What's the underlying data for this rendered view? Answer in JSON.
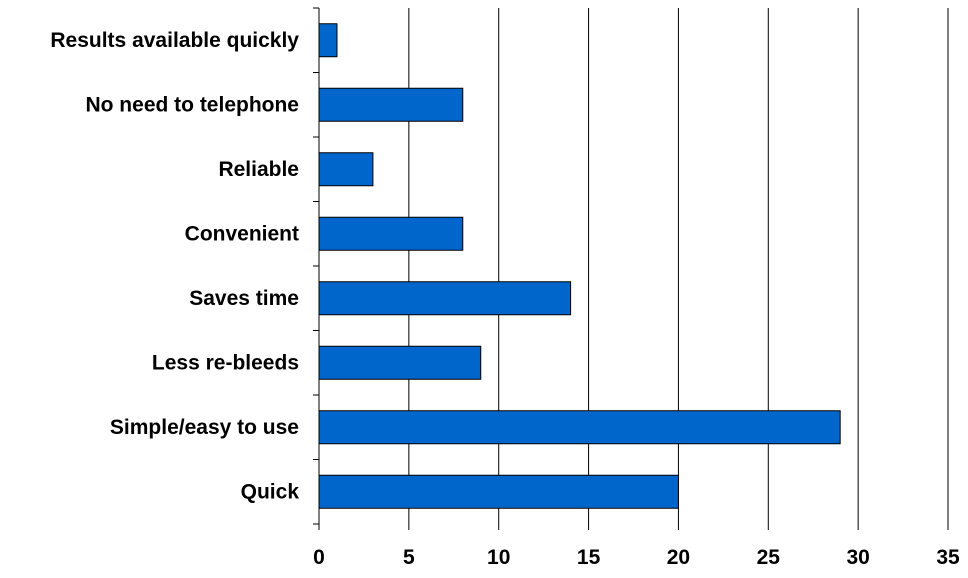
{
  "chart_data": {
    "type": "bar",
    "orientation": "horizontal",
    "categories": [
      "Results available quickly",
      "No need to telephone",
      "Reliable",
      "Convenient",
      "Saves time",
      "Less re-bleeds",
      "Simple/easy to use",
      "Quick"
    ],
    "values": [
      1,
      8,
      3,
      8,
      14,
      9,
      29,
      20
    ],
    "xlim": [
      0,
      35
    ],
    "x_ticks": [
      0,
      5,
      10,
      15,
      20,
      25,
      30,
      35
    ],
    "title": "",
    "xlabel": "",
    "ylabel": "",
    "grid": "vertical",
    "bar_color": "#0066CC",
    "bar_outline_color": "#000000",
    "gridline_color": "#000000"
  }
}
